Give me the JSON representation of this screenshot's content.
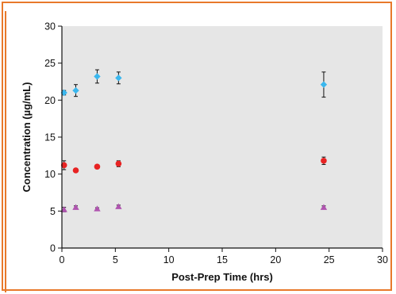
{
  "chart_data": {
    "type": "scatter",
    "title": "",
    "xlabel": "Post-Prep Time (hrs)",
    "ylabel": "Concentration (µg/mL)",
    "xlim": [
      0,
      30
    ],
    "ylim": [
      0,
      30
    ],
    "x_ticks": [
      0,
      5,
      10,
      15,
      20,
      25,
      30
    ],
    "y_ticks": [
      0,
      5,
      10,
      15,
      20,
      25,
      30
    ],
    "grid": false,
    "legend": "none",
    "plot_background": "#e6e6e6",
    "border_color": "#e8792b",
    "series": [
      {
        "marker": "diamond",
        "color": "#3ab7ee",
        "points": [
          {
            "x": 0.2,
            "y": 21.0,
            "err": 0.3
          },
          {
            "x": 1.3,
            "y": 21.3,
            "err": 0.8
          },
          {
            "x": 3.3,
            "y": 23.2,
            "err": 0.9
          },
          {
            "x": 5.3,
            "y": 23.0,
            "err": 0.8
          },
          {
            "x": 24.5,
            "y": 22.1,
            "err": 1.7
          }
        ]
      },
      {
        "marker": "circle",
        "color": "#e82323",
        "points": [
          {
            "x": 0.2,
            "y": 11.2,
            "err": 0.6
          },
          {
            "x": 1.3,
            "y": 10.5,
            "err": 0.25
          },
          {
            "x": 3.3,
            "y": 11.0,
            "err": 0.25
          },
          {
            "x": 5.3,
            "y": 11.4,
            "err": 0.4
          },
          {
            "x": 24.5,
            "y": 11.8,
            "err": 0.5
          }
        ]
      },
      {
        "marker": "triangle",
        "color": "#b054b0",
        "points": [
          {
            "x": 0.2,
            "y": 5.2,
            "err": 0.3
          },
          {
            "x": 1.3,
            "y": 5.5,
            "err": 0.2
          },
          {
            "x": 3.3,
            "y": 5.3,
            "err": 0.15
          },
          {
            "x": 5.3,
            "y": 5.6,
            "err": 0.2
          },
          {
            "x": 24.5,
            "y": 5.5,
            "err": 0.2
          }
        ]
      }
    ]
  }
}
